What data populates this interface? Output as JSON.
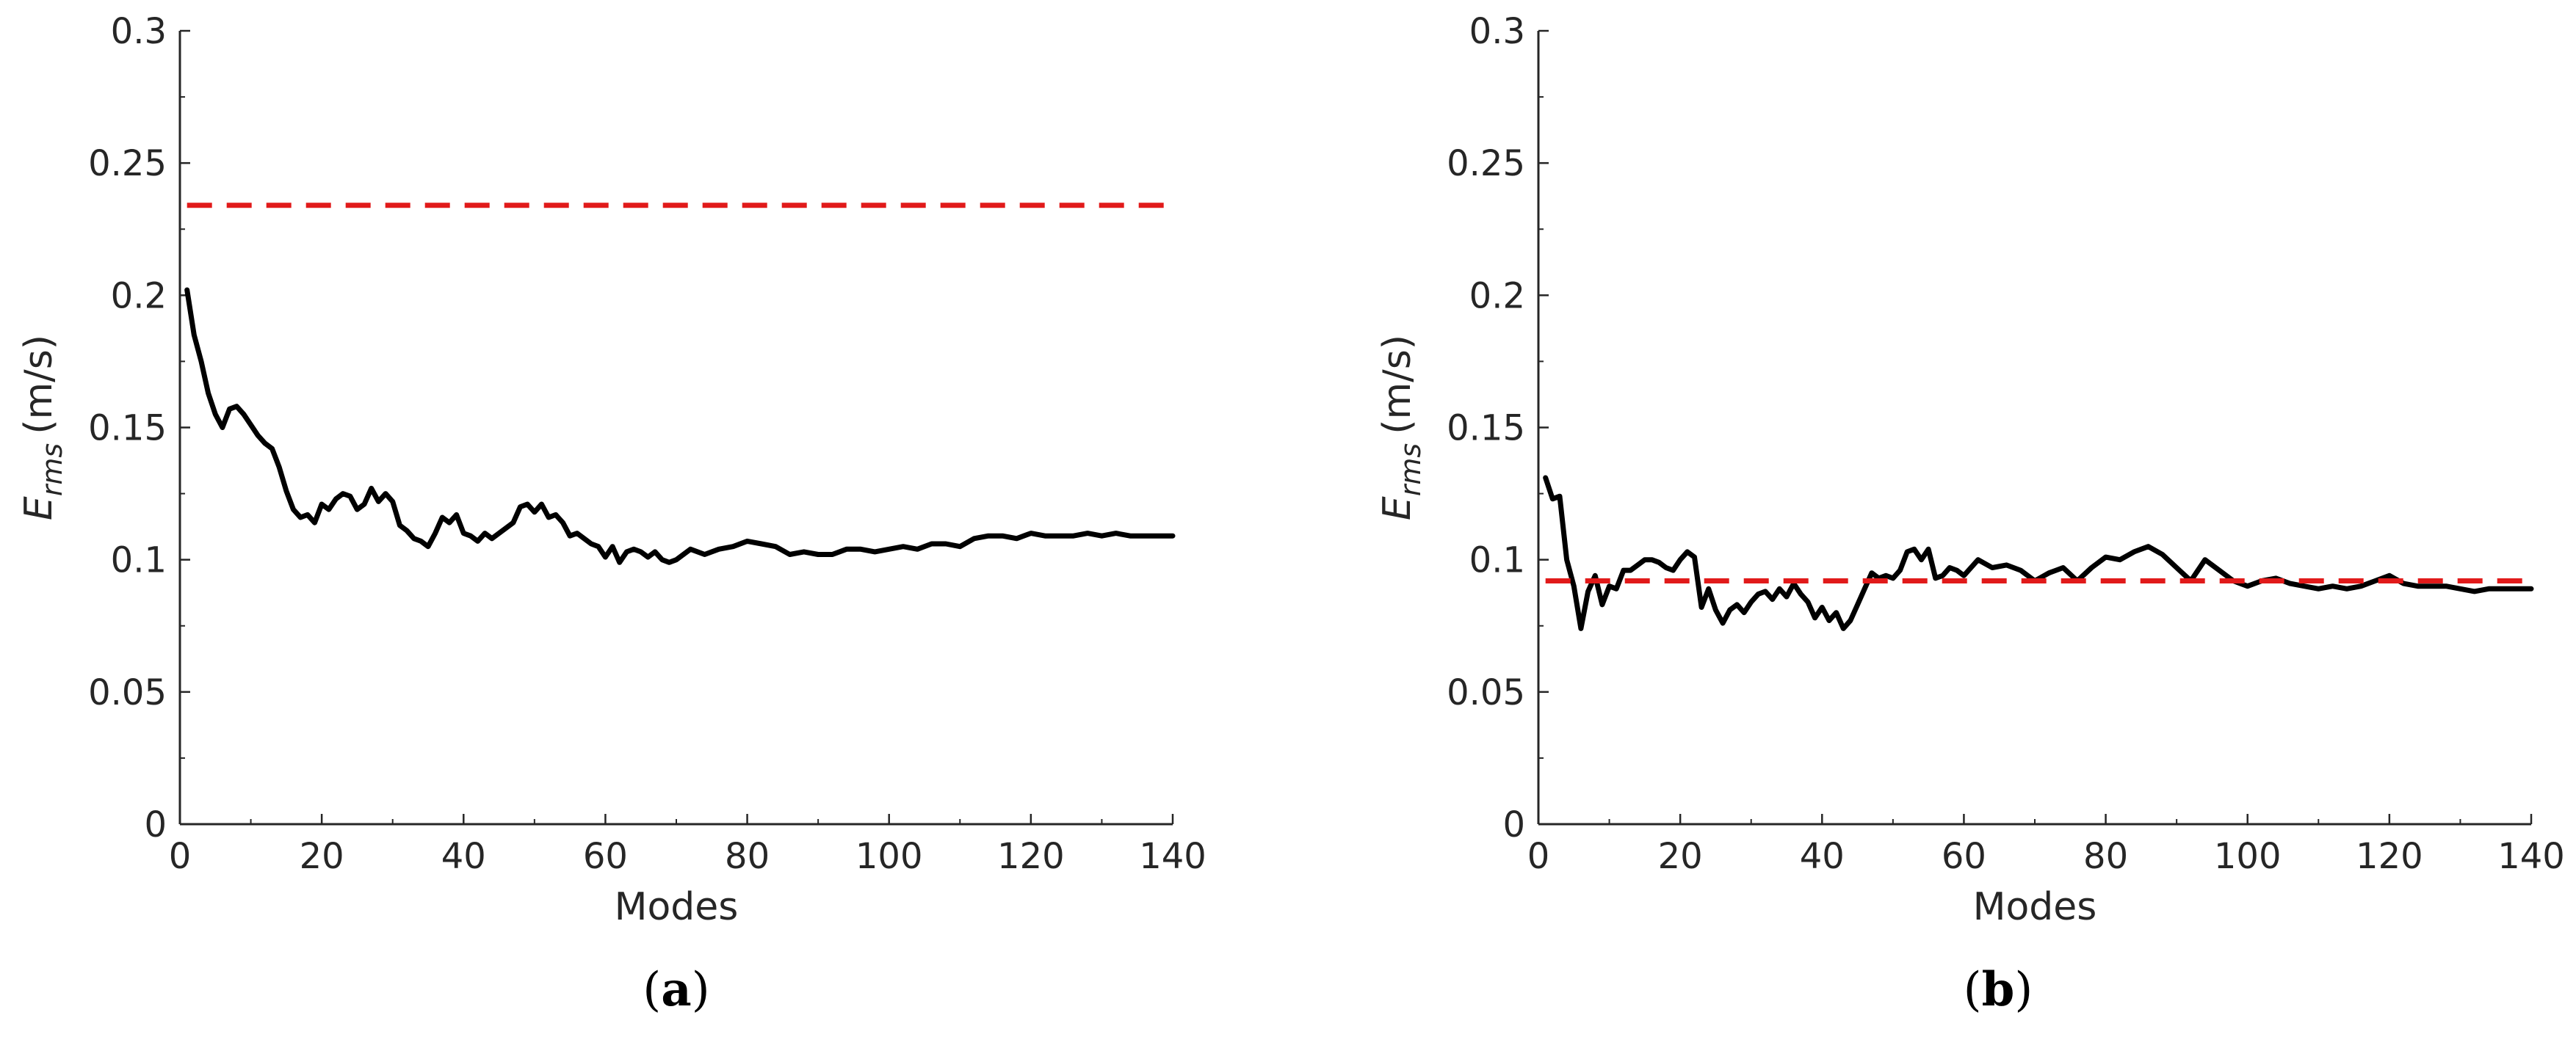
{
  "chart_data": [
    {
      "type": "line",
      "panel_label": "a",
      "xlabel": "Modes",
      "ylabel_main": "E",
      "ylabel_sub": "rms",
      "ylabel_unit": "(m/s)",
      "xlim": [
        0,
        140
      ],
      "ylim": [
        0,
        0.3
      ],
      "xticks": [
        0,
        20,
        40,
        60,
        80,
        100,
        120,
        140
      ],
      "xtick_labels": [
        "0",
        "20",
        "40",
        "60",
        "80",
        "100",
        "120",
        "140"
      ],
      "yticks": [
        0,
        0.05,
        0.1,
        0.15,
        0.2,
        0.25,
        0.3
      ],
      "ytick_labels": [
        "0",
        "0.05",
        "0.1",
        "0.15",
        "0.2",
        "0.25",
        "0.3"
      ],
      "grid": false,
      "series": [
        {
          "style": "solid",
          "color": "#000000",
          "x": [
            1,
            2,
            3,
            4,
            5,
            6,
            7,
            8,
            9,
            10,
            11,
            12,
            13,
            14,
            15,
            16,
            17,
            18,
            19,
            20,
            21,
            22,
            23,
            24,
            25,
            26,
            27,
            28,
            29,
            30,
            31,
            32,
            33,
            34,
            35,
            36,
            37,
            38,
            39,
            40,
            41,
            42,
            43,
            44,
            45,
            46,
            47,
            48,
            49,
            50,
            51,
            52,
            53,
            54,
            55,
            56,
            57,
            58,
            59,
            60,
            61,
            62,
            63,
            64,
            65,
            66,
            67,
            68,
            69,
            70,
            72,
            74,
            76,
            78,
            80,
            82,
            84,
            86,
            88,
            90,
            92,
            94,
            96,
            98,
            100,
            102,
            104,
            106,
            108,
            110,
            112,
            114,
            116,
            118,
            120,
            122,
            124,
            126,
            128,
            130,
            132,
            134,
            136,
            138,
            140
          ],
          "y": [
            0.202,
            0.185,
            0.175,
            0.163,
            0.155,
            0.15,
            0.157,
            0.158,
            0.155,
            0.151,
            0.147,
            0.144,
            0.142,
            0.135,
            0.126,
            0.119,
            0.116,
            0.117,
            0.114,
            0.121,
            0.119,
            0.123,
            0.125,
            0.124,
            0.119,
            0.121,
            0.127,
            0.122,
            0.125,
            0.122,
            0.113,
            0.111,
            0.108,
            0.107,
            0.105,
            0.11,
            0.116,
            0.114,
            0.117,
            0.11,
            0.109,
            0.107,
            0.11,
            0.108,
            0.11,
            0.112,
            0.114,
            0.12,
            0.121,
            0.118,
            0.121,
            0.116,
            0.117,
            0.114,
            0.109,
            0.11,
            0.108,
            0.106,
            0.105,
            0.101,
            0.105,
            0.099,
            0.103,
            0.104,
            0.103,
            0.101,
            0.103,
            0.1,
            0.099,
            0.1,
            0.104,
            0.102,
            0.104,
            0.105,
            0.107,
            0.106,
            0.105,
            0.102,
            0.103,
            0.102,
            0.102,
            0.104,
            0.104,
            0.103,
            0.104,
            0.105,
            0.104,
            0.106,
            0.106,
            0.105,
            0.108,
            0.109,
            0.109,
            0.108,
            0.11,
            0.109,
            0.109,
            0.109,
            0.11,
            0.109,
            0.11,
            0.109,
            0.109,
            0.109,
            0.109
          ]
        },
        {
          "style": "dashed",
          "color": "#e11a1a",
          "x": [
            1,
            140
          ],
          "y": [
            0.234,
            0.234
          ]
        }
      ]
    },
    {
      "type": "line",
      "panel_label": "b",
      "xlabel": "Modes",
      "ylabel_main": "E",
      "ylabel_sub": "rms",
      "ylabel_unit": "(m/s)",
      "xlim": [
        0,
        140
      ],
      "ylim": [
        0,
        0.3
      ],
      "xticks": [
        0,
        20,
        40,
        60,
        80,
        100,
        120,
        140
      ],
      "xtick_labels": [
        "0",
        "20",
        "40",
        "60",
        "80",
        "100",
        "120",
        "140"
      ],
      "yticks": [
        0,
        0.05,
        0.1,
        0.15,
        0.2,
        0.25,
        0.3
      ],
      "ytick_labels": [
        "0",
        "0.05",
        "0.1",
        "0.15",
        "0.2",
        "0.25",
        "0.3"
      ],
      "grid": false,
      "series": [
        {
          "style": "solid",
          "color": "#000000",
          "x": [
            1,
            2,
            3,
            4,
            5,
            6,
            7,
            8,
            9,
            10,
            11,
            12,
            13,
            14,
            15,
            16,
            17,
            18,
            19,
            20,
            21,
            22,
            23,
            24,
            25,
            26,
            27,
            28,
            29,
            30,
            31,
            32,
            33,
            34,
            35,
            36,
            37,
            38,
            39,
            40,
            41,
            42,
            43,
            44,
            45,
            46,
            47,
            48,
            49,
            50,
            51,
            52,
            53,
            54,
            55,
            56,
            57,
            58,
            59,
            60,
            62,
            64,
            66,
            68,
            70,
            72,
            74,
            76,
            78,
            80,
            82,
            84,
            86,
            88,
            90,
            92,
            94,
            96,
            98,
            100,
            102,
            104,
            106,
            108,
            110,
            112,
            114,
            116,
            118,
            120,
            122,
            124,
            126,
            128,
            130,
            132,
            134,
            136,
            138,
            140
          ],
          "y": [
            0.131,
            0.123,
            0.124,
            0.1,
            0.09,
            0.074,
            0.088,
            0.094,
            0.083,
            0.09,
            0.089,
            0.096,
            0.096,
            0.098,
            0.1,
            0.1,
            0.099,
            0.097,
            0.096,
            0.1,
            0.103,
            0.101,
            0.082,
            0.089,
            0.081,
            0.076,
            0.081,
            0.083,
            0.08,
            0.084,
            0.087,
            0.088,
            0.085,
            0.089,
            0.086,
            0.091,
            0.087,
            0.084,
            0.078,
            0.082,
            0.077,
            0.08,
            0.074,
            0.077,
            0.083,
            0.089,
            0.095,
            0.093,
            0.094,
            0.093,
            0.096,
            0.103,
            0.104,
            0.1,
            0.104,
            0.093,
            0.094,
            0.097,
            0.096,
            0.094,
            0.1,
            0.097,
            0.098,
            0.096,
            0.092,
            0.095,
            0.097,
            0.092,
            0.097,
            0.101,
            0.1,
            0.103,
            0.105,
            0.102,
            0.097,
            0.092,
            0.1,
            0.096,
            0.092,
            0.09,
            0.092,
            0.093,
            0.091,
            0.09,
            0.089,
            0.09,
            0.089,
            0.09,
            0.092,
            0.094,
            0.091,
            0.09,
            0.09,
            0.09,
            0.089,
            0.088,
            0.089,
            0.089,
            0.089,
            0.089
          ]
        },
        {
          "style": "dashed",
          "color": "#e11a1a",
          "x": [
            1,
            140
          ],
          "y": [
            0.092,
            0.092
          ]
        }
      ]
    }
  ]
}
